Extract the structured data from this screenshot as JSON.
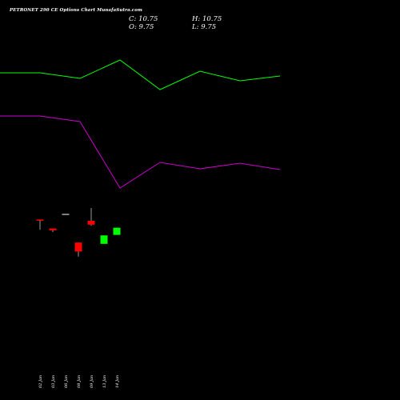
{
  "header": {
    "title": "PETRONET 290 CE Options  Chart MunafaSutra.com",
    "close_label": "C: 10.75",
    "high_label": "H: 10.75",
    "open_label": "O: 9.75",
    "low_label": "L: 9.75"
  },
  "chart_data": {
    "type": "candlestick",
    "colors": {
      "background": "#000000",
      "green_line": "#00ff00",
      "magenta_line": "#cc00cc",
      "up_candle": "#00ff00",
      "down_candle": "#ff0000",
      "neutral": "#ffffff"
    },
    "green_series": [
      91,
      91,
      98,
      75,
      112,
      89,
      101,
      95
    ],
    "magenta_series": [
      145,
      145,
      152,
      235,
      203,
      211,
      204,
      212
    ],
    "candles": [
      {
        "date": "02 Jan",
        "open": 13.0,
        "high": 13.0,
        "low": 9.0,
        "close": 13.0
      },
      {
        "date": "03 Jan",
        "open": 9.5,
        "high": 9.5,
        "low": 8.1,
        "close": 8.8
      },
      {
        "date": "06 Jan",
        "open": 15.0,
        "high": 15.0,
        "low": 15.0,
        "close": 15.0
      },
      {
        "date": "08 Jan",
        "open": 4.0,
        "high": 4.0,
        "low": -1.5,
        "close": 0.5
      },
      {
        "date": "09 Jan",
        "open": 12.5,
        "high": 17.5,
        "low": 10.5,
        "close": 11.0
      },
      {
        "date": "13 Jan",
        "open": 3.5,
        "high": 6.8,
        "low": 3.5,
        "close": 6.8
      },
      {
        "date": "14 Jan",
        "open": 7.0,
        "high": 9.8,
        "low": 7.0,
        "close": 9.8
      }
    ]
  }
}
